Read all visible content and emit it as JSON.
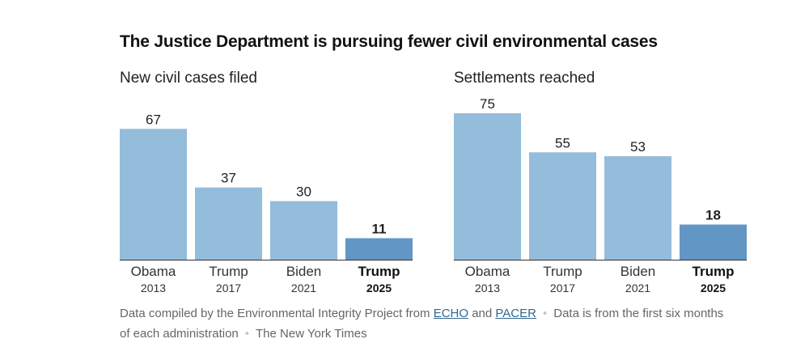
{
  "headline": "The Justice Department is pursuing fewer civil environmental cases",
  "colors": {
    "bar_default": "#94bcdb",
    "bar_highlight": "#6296c5",
    "baseline": "#333333"
  },
  "chart_data": [
    {
      "type": "bar",
      "title": "New civil cases filed",
      "categories": [
        "Obama",
        "Trump",
        "Biden",
        "Trump"
      ],
      "years": [
        "2013",
        "2017",
        "2021",
        "2025"
      ],
      "values": [
        67,
        37,
        30,
        11
      ],
      "highlight_index": 3,
      "ylim": [
        0,
        75
      ],
      "grid": false
    },
    {
      "type": "bar",
      "title": "Settlements reached",
      "categories": [
        "Obama",
        "Trump",
        "Biden",
        "Trump"
      ],
      "years": [
        "2013",
        "2017",
        "2021",
        "2025"
      ],
      "values": [
        75,
        55,
        53,
        18
      ],
      "highlight_index": 3,
      "ylim": [
        0,
        75
      ],
      "grid": false
    }
  ],
  "source": {
    "prefix": "Data compiled by the Environmental Integrity Project from",
    "link1": "ECHO",
    "and": "and",
    "link2": "PACER",
    "note": "Data is from the first six months of each administration",
    "credit": "The New York Times"
  }
}
